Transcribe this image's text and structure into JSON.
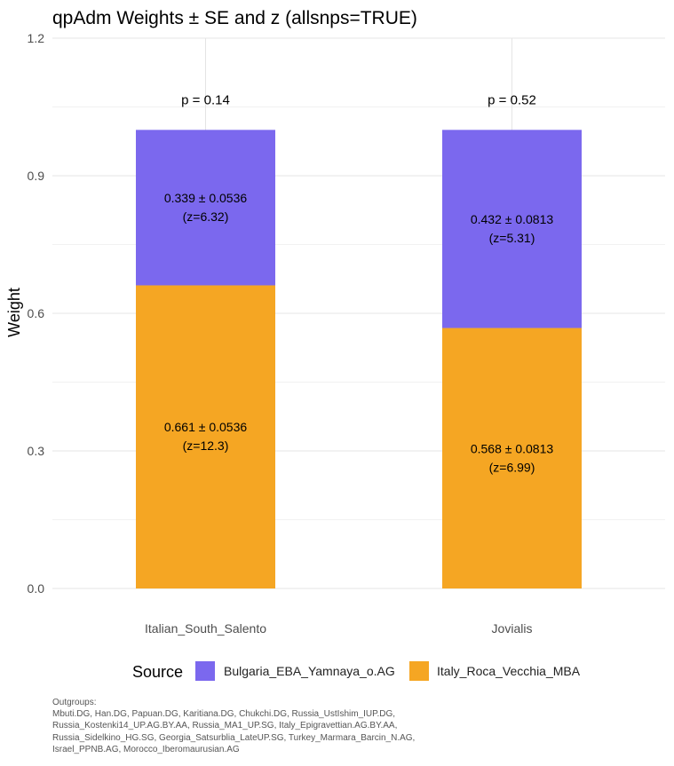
{
  "chart_data": {
    "type": "bar",
    "stacked": true,
    "title": "qpAdm Weights ± SE and z (allsnps=TRUE)",
    "xlabel": "",
    "ylabel": "Weight",
    "ylim": [
      0,
      1.2
    ],
    "yticks": [
      "0.0",
      "0.3",
      "0.6",
      "0.9",
      "1.2"
    ],
    "ytick_values": [
      0,
      0.3,
      0.6,
      0.9,
      1.2
    ],
    "grid": true,
    "categories": [
      "Italian_South_Salento",
      "Jovialis"
    ],
    "p_labels": [
      "p = 0.14",
      "p = 0.52"
    ],
    "series": [
      {
        "name": "Italy_Roca_Vecchia_MBA",
        "color": "#F5A623",
        "values": [
          0.661,
          0.568
        ],
        "labels": [
          [
            "0.661 ± 0.0536",
            "(z=12.3)"
          ],
          [
            "0.568 ± 0.0813",
            "(z=6.99)"
          ]
        ]
      },
      {
        "name": "Bulgaria_EBA_Yamnaya_o.AG",
        "color": "#7B68EE",
        "values": [
          0.339,
          0.432
        ],
        "labels": [
          [
            "0.339 ± 0.0536",
            "(z=6.32)"
          ],
          [
            "0.432 ± 0.0813",
            "(z=5.31)"
          ]
        ]
      }
    ],
    "legend": {
      "title": "Source",
      "position": "bottom",
      "items": [
        {
          "label": "Bulgaria_EBA_Yamnaya_o.AG",
          "color": "#7B68EE"
        },
        {
          "label": "Italy_Roca_Vecchia_MBA",
          "color": "#F5A623"
        }
      ]
    }
  },
  "caption": {
    "lines": [
      "Outgroups:",
      " Mbuti.DG, Han.DG, Papuan.DG, Karitiana.DG, Chukchi.DG, Russia_UstIshim_IUP.DG,",
      "Russia_Kostenki14_UP.AG.BY.AA, Russia_MA1_UP.SG, Italy_Epigravettian.AG.BY.AA,",
      "Russia_Sidelkino_HG.SG, Georgia_Satsurblia_LateUP.SG, Turkey_Marmara_Barcin_N.AG,",
      "Israel_PPNB.AG, Morocco_Iberomaurusian.AG"
    ]
  }
}
